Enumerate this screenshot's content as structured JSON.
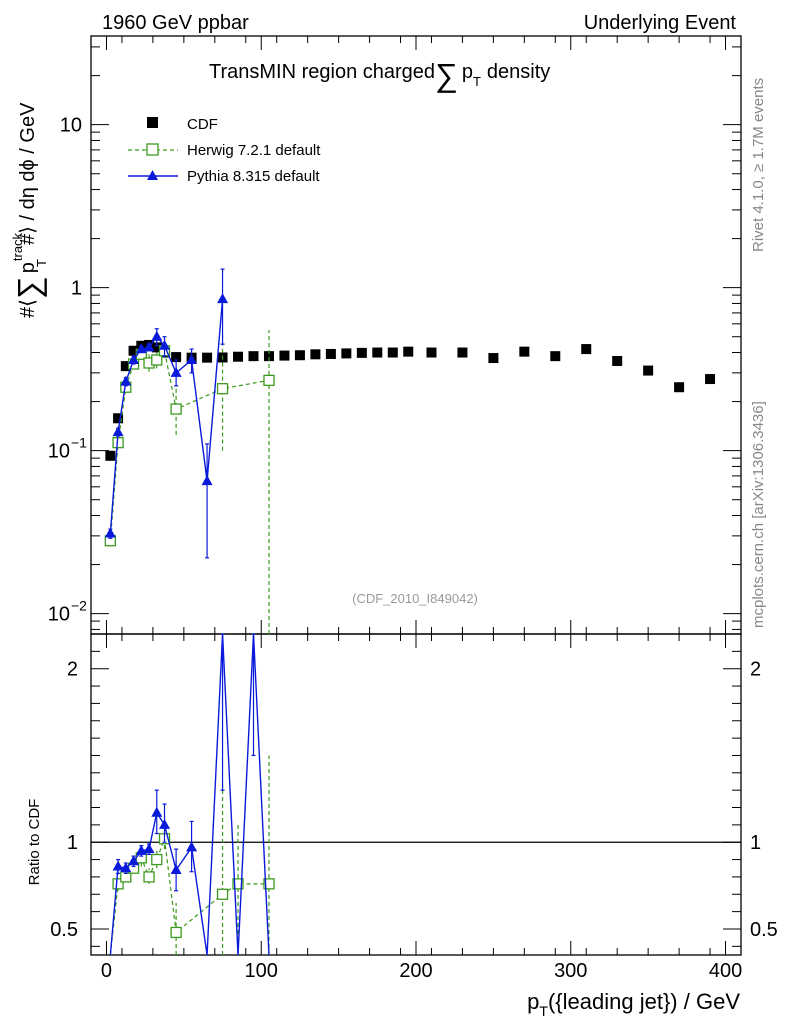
{
  "header": {
    "left": "1960 GeV ppbar",
    "right": "Underlying Event"
  },
  "side": {
    "rivet": "Rivet 4.1.0, ≥ 1.7M events",
    "mcplots": "mcplots.cern.ch [arXiv:1306.3436]"
  },
  "chart_data": [
    {
      "type": "scatter",
      "panel": "main",
      "title_main": "TransMIN region charged",
      "title_sum": "∑",
      "title_p": "p",
      "title_sub": "T",
      "title_end": "density",
      "ylabel_pre": "#⟨",
      "ylabel_sum": "∑",
      "ylabel_p": "p",
      "ylabel_sup": "track",
      "ylabel_sub": "T",
      "ylabel_post": "#⟩ / dη dϕ / GeV",
      "yscale": "log",
      "xlim": [
        -10,
        410
      ],
      "ylim": [
        0.0075,
        35
      ],
      "y_ticks": [
        {
          "v": 10,
          "label": "10"
        },
        {
          "v": 1,
          "label": "1"
        },
        {
          "v": 0.1,
          "label": "10",
          "exp": "−1"
        },
        {
          "v": 0.01,
          "label": "10",
          "exp": "−2"
        }
      ],
      "watermark": "(CDF_2010_I849042)",
      "legend": [
        "CDF",
        "Herwig 7.2.1 default",
        "Pythia 8.315 default"
      ],
      "series": [
        {
          "name": "CDF",
          "x": [
            2.5,
            7.5,
            12.5,
            17.5,
            22.5,
            27.5,
            32.5,
            37.5,
            45,
            55,
            65,
            75,
            85,
            95,
            105,
            115,
            125,
            135,
            145,
            155,
            165,
            175,
            185,
            195,
            210,
            230,
            250,
            270,
            290,
            310,
            330,
            350,
            370,
            390
          ],
          "y": [
            0.093,
            0.158,
            0.33,
            0.41,
            0.44,
            0.445,
            0.43,
            0.4,
            0.375,
            0.372,
            0.372,
            0.373,
            0.377,
            0.38,
            0.38,
            0.383,
            0.385,
            0.39,
            0.392,
            0.395,
            0.398,
            0.4,
            0.4,
            0.405,
            0.4,
            0.4,
            0.37,
            0.405,
            0.38,
            0.42,
            0.355,
            0.31,
            0.245,
            0.275
          ]
        },
        {
          "name": "Herwig 7.2.1 default",
          "x": [
            2.5,
            7.5,
            12.5,
            17.5,
            22.5,
            27.5,
            32.5,
            37.5,
            45,
            75,
            105
          ],
          "y": [
            0.028,
            0.112,
            0.245,
            0.34,
            0.39,
            0.345,
            0.36,
            0.41,
            0.18,
            0.24,
            0.27
          ],
          "err_lo": [
            0.028,
            0.105,
            0.23,
            0.32,
            0.36,
            0.305,
            0.32,
            0.38,
            0.125,
            0.1,
            0.0075
          ],
          "err_hi": [
            0.028,
            0.12,
            0.26,
            0.36,
            0.43,
            0.39,
            0.4,
            0.44,
            0.25,
            0.52,
            0.55
          ]
        },
        {
          "name": "Pythia 8.315 default",
          "x": [
            2.5,
            7.5,
            12.5,
            17.5,
            22.5,
            27.5,
            32.5,
            37.5,
            45,
            55,
            65,
            75
          ],
          "y": [
            0.031,
            0.13,
            0.265,
            0.36,
            0.42,
            0.43,
            0.5,
            0.44,
            0.3,
            0.36,
            0.065,
            0.85
          ],
          "err_lo": [
            0.029,
            0.123,
            0.25,
            0.34,
            0.4,
            0.41,
            0.44,
            0.38,
            0.25,
            0.3,
            0.022,
            0.45
          ],
          "err_hi": [
            0.033,
            0.137,
            0.28,
            0.38,
            0.44,
            0.45,
            0.56,
            0.5,
            0.36,
            0.42,
            0.11,
            1.3
          ]
        }
      ]
    },
    {
      "type": "line",
      "panel": "ratio",
      "ylabel": "Ratio to CDF",
      "xlabel_p": "p",
      "xlabel_sub": "T",
      "xlabel_rest": "({leading jet}) / GeV",
      "xlim": [
        -10,
        410
      ],
      "ylim": [
        0.35,
        2.2
      ],
      "x_ticks": [
        0,
        100,
        200,
        300,
        400
      ],
      "y_ticks": [
        0.5,
        1,
        2
      ],
      "reference": 1,
      "series": [
        {
          "name": "Herwig 7.2.1 default",
          "x": [
            2.5,
            7.5,
            12.5,
            17.5,
            22.5,
            27.5,
            32.5,
            37.5,
            45,
            75,
            85,
            105
          ],
          "y": [
            0.31,
            0.76,
            0.8,
            0.85,
            0.91,
            0.8,
            0.9,
            1.02,
            0.48,
            0.7,
            0.76,
            0.76
          ],
          "err_lo": [
            0.31,
            0.72,
            0.77,
            0.82,
            0.86,
            0.76,
            0.85,
            0.96,
            0.34,
            0.3,
            0.3,
            0.02
          ],
          "err_hi": [
            0.31,
            0.8,
            0.83,
            0.88,
            0.96,
            0.85,
            0.95,
            1.08,
            0.65,
            1.35,
            1.1,
            1.5
          ]
        },
        {
          "name": "Pythia 8.315 default",
          "x": [
            2.5,
            7.5,
            12.5,
            17.5,
            22.5,
            27.5,
            32.5,
            37.5,
            45,
            55,
            65,
            75,
            85,
            95,
            105
          ],
          "y": [
            0.33,
            0.86,
            0.85,
            0.89,
            0.95,
            0.96,
            1.17,
            1.1,
            0.84,
            0.97,
            0.17,
            2.28,
            0.17,
            2.4,
            0.17
          ],
          "err_lo": [
            0.33,
            0.82,
            0.82,
            0.86,
            0.92,
            0.93,
            1.05,
            1.0,
            0.72,
            0.83,
            0.06,
            1.3,
            0.17,
            1.5,
            0.17
          ],
          "err_hi": [
            0.33,
            0.9,
            0.88,
            0.92,
            0.98,
            0.99,
            1.3,
            1.22,
            0.96,
            1.12,
            0.3,
            3.5,
            0.17,
            3.5,
            0.17
          ]
        }
      ]
    }
  ]
}
